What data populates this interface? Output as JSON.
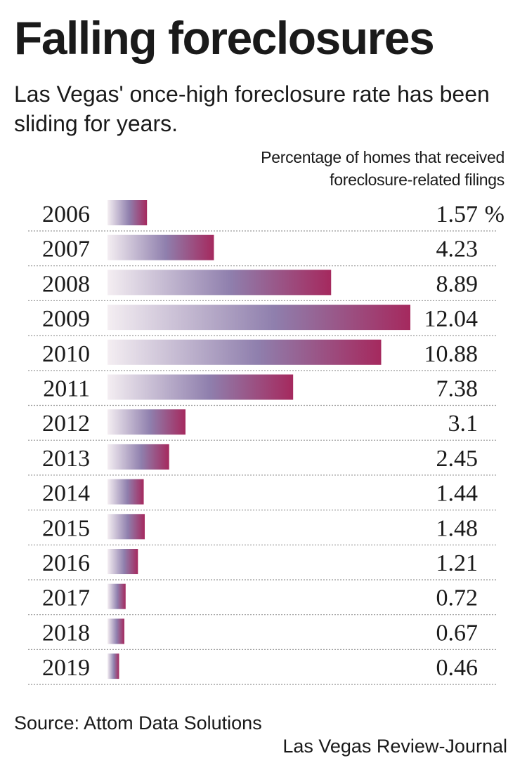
{
  "chart_data": {
    "type": "bar",
    "orientation": "horizontal",
    "title": "Falling foreclosures",
    "subtitle": "Las Vegas' once-high foreclosure rate has been sliding for years.",
    "axis_note_lines": [
      "Percentage of homes that received",
      "foreclosure-related filings"
    ],
    "unit": "%",
    "categories": [
      "2006",
      "2007",
      "2008",
      "2009",
      "2010",
      "2011",
      "2012",
      "2013",
      "2014",
      "2015",
      "2016",
      "2017",
      "2018",
      "2019"
    ],
    "values": [
      1.57,
      4.23,
      8.89,
      12.04,
      10.88,
      7.38,
      3.1,
      2.45,
      1.44,
      1.48,
      1.21,
      0.72,
      0.67,
      0.46
    ],
    "value_labels": [
      "1.57",
      "4.23",
      "8.89",
      "12.04",
      "10.88",
      "7.38",
      "3.1",
      "2.45",
      "1.44",
      "1.48",
      "1.21",
      "0.72",
      "0.67",
      "0.46"
    ],
    "xlim": [
      0,
      12.04
    ],
    "grid": false,
    "colors": {
      "bar_light": "#f4eef2",
      "bar_mid": "#8f7fad",
      "bar_dark": "#a5295e",
      "divider": "#999999"
    }
  },
  "source": "Source: Attom Data Solutions",
  "credit": "Las Vegas Review-Journal"
}
